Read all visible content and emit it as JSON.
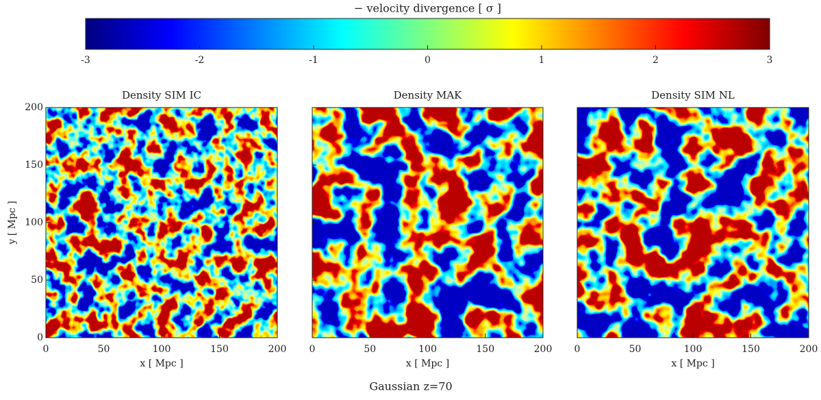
{
  "chart_data": [
    {
      "type": "colorbar",
      "title": "− velocity divergence [ σ ]",
      "colormap": "jet",
      "xlim": [
        -3,
        3
      ],
      "xticks": [
        -3,
        -2,
        -1,
        0,
        1,
        2,
        3
      ]
    },
    {
      "type": "heatmap",
      "title": "Density SIM IC",
      "colormap": "jet",
      "xlabel": "x [ Mpc ]",
      "ylabel": "y [ Mpc ]",
      "xlim": [
        0,
        200
      ],
      "ylim": [
        0,
        200
      ],
      "xticks": [
        0,
        50,
        100,
        150,
        200
      ],
      "yticks": [
        0,
        50,
        100,
        150,
        200
      ],
      "show_ytick_labels": true
    },
    {
      "type": "heatmap",
      "title": "Density MAK",
      "colormap": "jet",
      "xlabel": "x [ Mpc ]",
      "xlim": [
        0,
        200
      ],
      "ylim": [
        0,
        200
      ],
      "xticks": [
        0,
        50,
        100,
        150,
        200
      ],
      "yticks": [
        0,
        50,
        100,
        150,
        200
      ],
      "show_ytick_labels": false
    },
    {
      "type": "heatmap",
      "title": "Density SIM NL",
      "colormap": "jet",
      "xlabel": "x [ Mpc ]",
      "xlim": [
        0,
        200
      ],
      "ylim": [
        0,
        200
      ],
      "xticks": [
        0,
        50,
        100,
        150,
        200
      ],
      "yticks": [
        0,
        50,
        100,
        150,
        200
      ],
      "show_ytick_labels": false
    }
  ],
  "caption": "Gaussian z=70"
}
